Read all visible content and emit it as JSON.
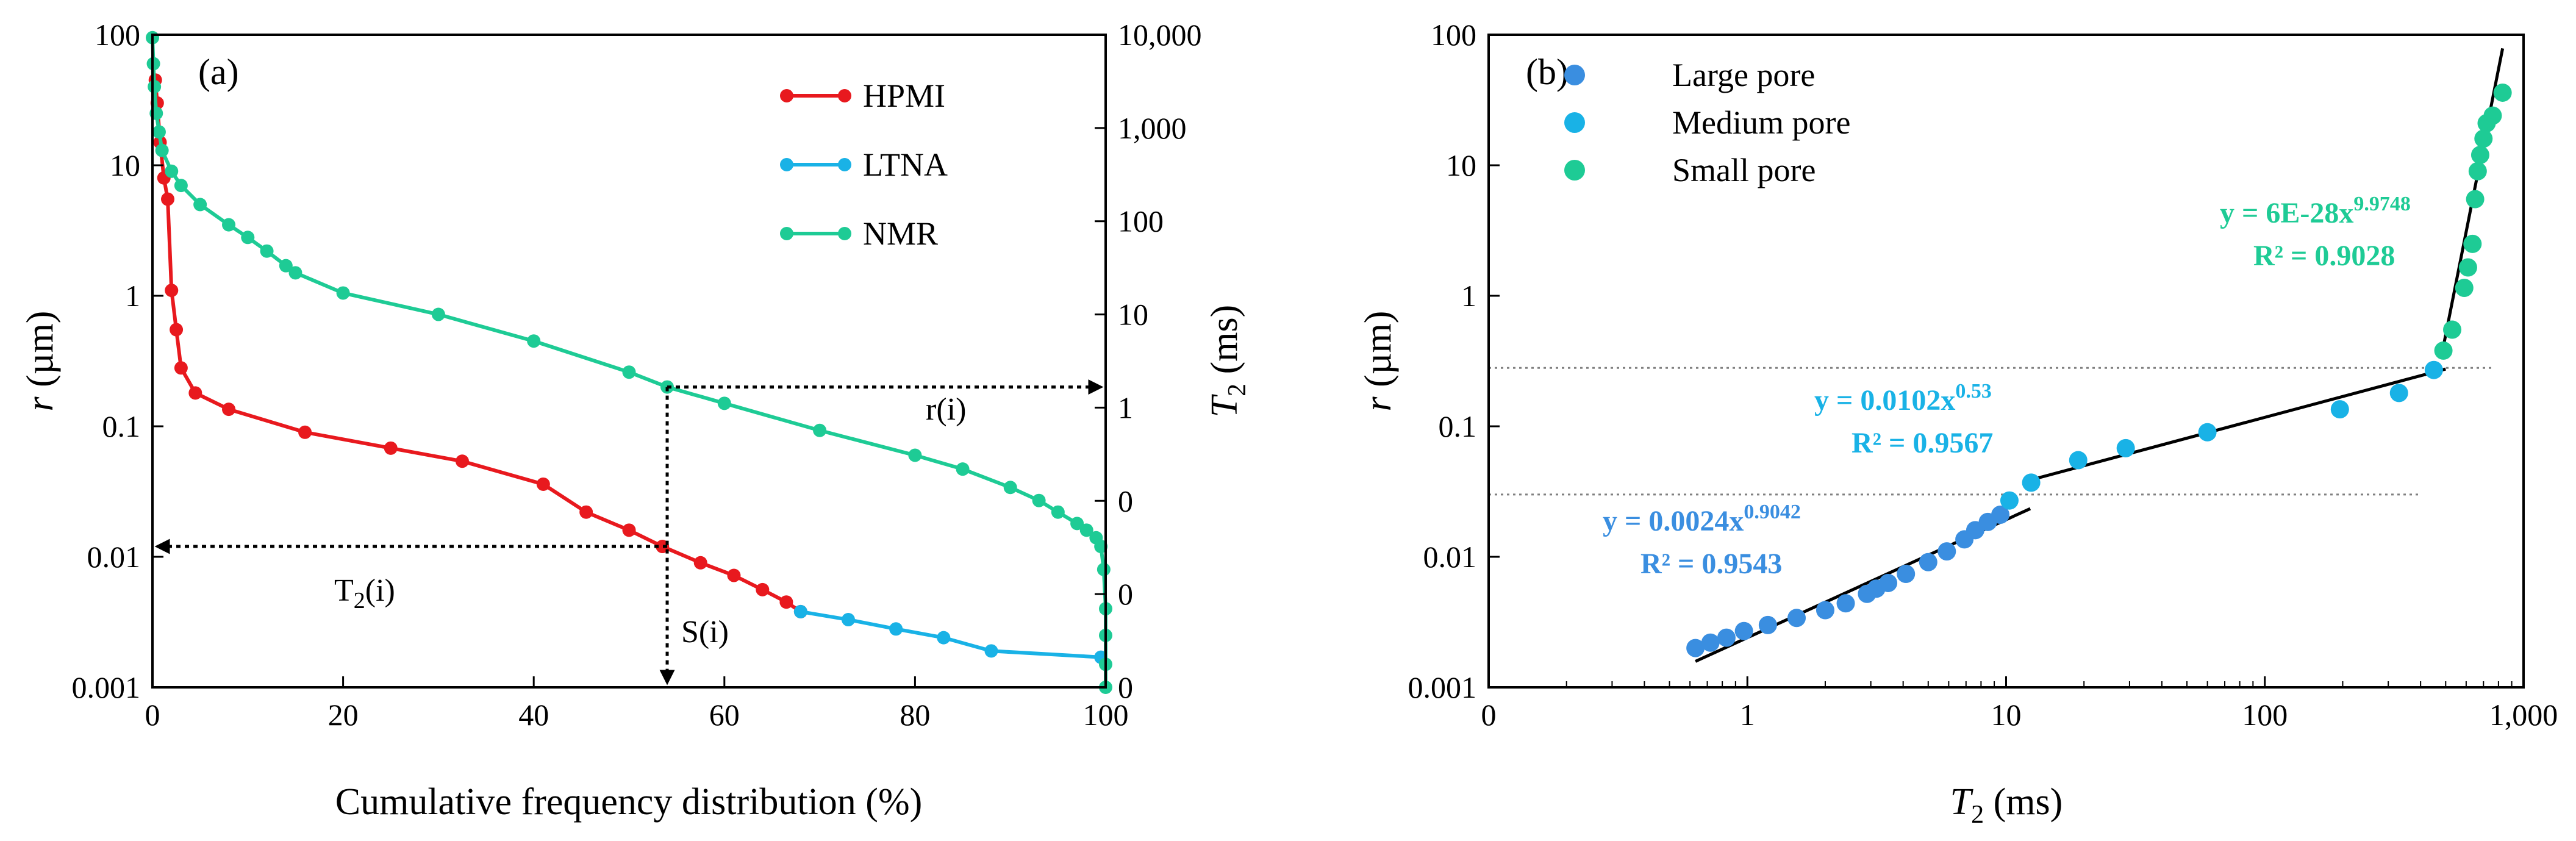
{
  "colors": {
    "hpmi": "#E8191E",
    "ltna": "#19B2E6",
    "nmr": "#1ECB95",
    "large": "#3A8EE0",
    "medium": "#19B2E6",
    "small": "#1ECB95",
    "axis": "#000000",
    "guide": "#808080"
  },
  "panel_a": {
    "label": "(a)",
    "annotations": {
      "r": "r(i)",
      "t2": "T2(i)",
      "s": "S(i)",
      "s_x": 54,
      "r_y": 0.2
    }
  },
  "panel_b": {
    "label": "(b)",
    "fit_large": {
      "eq": "y = 0.0024x",
      "exp": "0.9042",
      "r2": "R² = 0.9543"
    },
    "fit_medium": {
      "eq": "y = 0.0102x",
      "exp": "0.53",
      "r2": "R² = 0.9567"
    },
    "fit_small": {
      "eq": "y = 6E-28x",
      "exp": "9.9748",
      "r2": "R² = 0.9028"
    },
    "guides": [
      0.28,
      0.03
    ]
  },
  "chart_data": [
    {
      "type": "line",
      "title": "(a)",
      "xlabel": "Cumulative frequency distribution (%)",
      "ylabel": "r (µm)",
      "y2label": "T2 (ms)",
      "xlim": [
        0,
        100
      ],
      "ylim": [
        0.001,
        100
      ],
      "yscale": "log",
      "xticks": [
        "0",
        "20",
        "40",
        "60",
        "80",
        "100"
      ],
      "yticks": [
        "0.001",
        "0.01",
        "0.1",
        "1",
        "10",
        "100"
      ],
      "y2ticks": [
        "0",
        "0",
        "0",
        "1",
        "10",
        "100",
        "1,000",
        "10,000"
      ],
      "legend": [
        "HPMI",
        "LTNA",
        "NMR"
      ],
      "legend_position": "top-right",
      "series": [
        {
          "name": "HPMI",
          "x": [
            0.3,
            0.5,
            0.8,
            1.2,
            1.6,
            2,
            2.5,
            3,
            4.5,
            8,
            16,
            25,
            32.5,
            41,
            45.5,
            50,
            53.5,
            57.5,
            61,
            64,
            66.5,
            68
          ],
          "y": [
            45,
            30,
            15,
            8,
            5.5,
            1.1,
            0.55,
            0.28,
            0.18,
            0.135,
            0.09,
            0.068,
            0.054,
            0.036,
            0.022,
            0.016,
            0.012,
            0.009,
            0.0072,
            0.0056,
            0.0045,
            0.0038
          ]
        },
        {
          "name": "LTNA",
          "x": [
            68,
            73,
            78,
            83,
            88,
            99.5
          ],
          "y": [
            0.0038,
            0.0033,
            0.0028,
            0.0024,
            0.0019,
            0.0017
          ]
        },
        {
          "name": "NMR",
          "x": [
            0,
            0.1,
            0.2,
            0.4,
            0.7,
            1,
            2,
            3,
            5,
            8,
            10,
            12,
            14,
            15,
            20,
            30,
            40,
            50,
            54,
            60,
            70,
            80,
            85,
            90,
            93,
            95,
            97,
            98,
            99,
            99.5,
            99.8,
            100,
            100,
            100,
            100
          ],
          "y": [
            95,
            60,
            40,
            25,
            18,
            13,
            9,
            7,
            5,
            3.5,
            2.8,
            2.2,
            1.7,
            1.5,
            1.05,
            0.72,
            0.45,
            0.26,
            0.2,
            0.15,
            0.093,
            0.06,
            0.047,
            0.034,
            0.027,
            0.022,
            0.018,
            0.016,
            0.014,
            0.012,
            0.008,
            0.004,
            0.0025,
            0.0015,
            0.001
          ]
        }
      ]
    },
    {
      "type": "scatter",
      "title": "(b)",
      "xlabel": "T2 (ms)",
      "ylabel": "r (µm)",
      "xscale": "log",
      "yscale": "log",
      "xlim": [
        0.1,
        1000
      ],
      "ylim": [
        0.001,
        100
      ],
      "xticks": [
        "0",
        "1",
        "10",
        "100",
        "1,000"
      ],
      "yticks": [
        "0.001",
        "0.01",
        "0.1",
        "1",
        "10",
        "100"
      ],
      "legend": [
        "Large pore",
        "Medium pore",
        "Small pore"
      ],
      "legend_position": "top-left",
      "series": [
        {
          "name": "Large pore",
          "x": [
            0.63,
            0.72,
            0.83,
            0.97,
            1.2,
            1.55,
            2.0,
            2.4,
            2.9,
            3.15,
            3.5,
            4.1,
            5.0,
            5.9,
            6.9,
            7.6,
            8.5,
            9.5
          ],
          "y": [
            0.002,
            0.0022,
            0.0024,
            0.0027,
            0.003,
            0.0034,
            0.0039,
            0.0044,
            0.0052,
            0.0057,
            0.0063,
            0.0074,
            0.0091,
            0.011,
            0.0136,
            0.016,
            0.0185,
            0.021
          ]
        },
        {
          "name": "Medium pore",
          "x": [
            10.3,
            12.5,
            19,
            29,
            60,
            195,
            330,
            450
          ],
          "y": [
            0.027,
            0.037,
            0.055,
            0.068,
            0.09,
            0.135,
            0.18,
            0.27
          ]
        },
        {
          "name": "Small pore",
          "x": [
            490,
            530,
            590,
            610,
            635,
            650,
            665,
            680,
            700,
            720,
            760,
            830
          ],
          "y": [
            0.38,
            0.55,
            1.15,
            1.65,
            2.5,
            5.5,
            9,
            12,
            16,
            21,
            24,
            36
          ]
        }
      ],
      "fits": [
        {
          "name": "Large pore",
          "a": 0.0024,
          "b": 0.9042,
          "x_range": [
            0.63,
            12.4
          ]
        },
        {
          "name": "Medium pore",
          "a": 0.0102,
          "b": 0.53,
          "x_range": [
            12.4,
            500
          ]
        },
        {
          "name": "Small pore",
          "a": 6e-28,
          "b": 9.9748,
          "x_range": [
            490,
            830
          ]
        }
      ]
    }
  ]
}
